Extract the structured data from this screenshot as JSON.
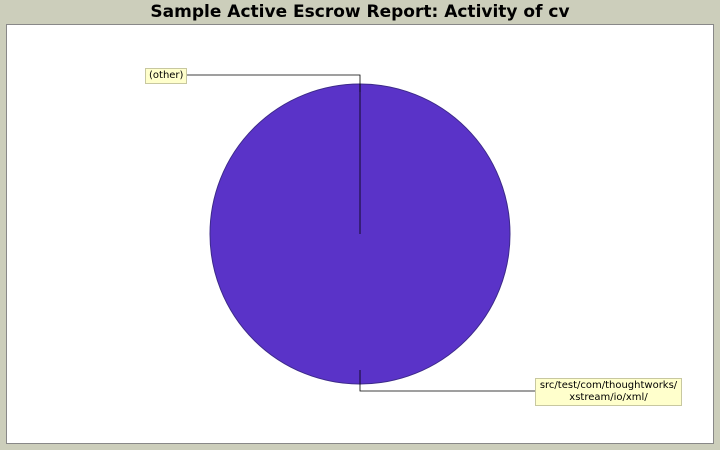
{
  "chart_data": {
    "type": "pie",
    "title": "Sample Active Escrow Report: Activity of cv",
    "slices": [
      {
        "label": "(other)",
        "value": 0.0
      },
      {
        "label_lines": [
          "src/test/com/thoughtworks/",
          "xstream/io/xml/"
        ],
        "value": 100.0
      }
    ],
    "colors": {
      "slice_main": "#5a33c8",
      "slice_edge": "#3d2a8a",
      "label_bg": "#ffffcc",
      "leader": "#000000",
      "background": "#cccebb",
      "plot_bg": "#ffffff"
    },
    "legend": "none"
  }
}
